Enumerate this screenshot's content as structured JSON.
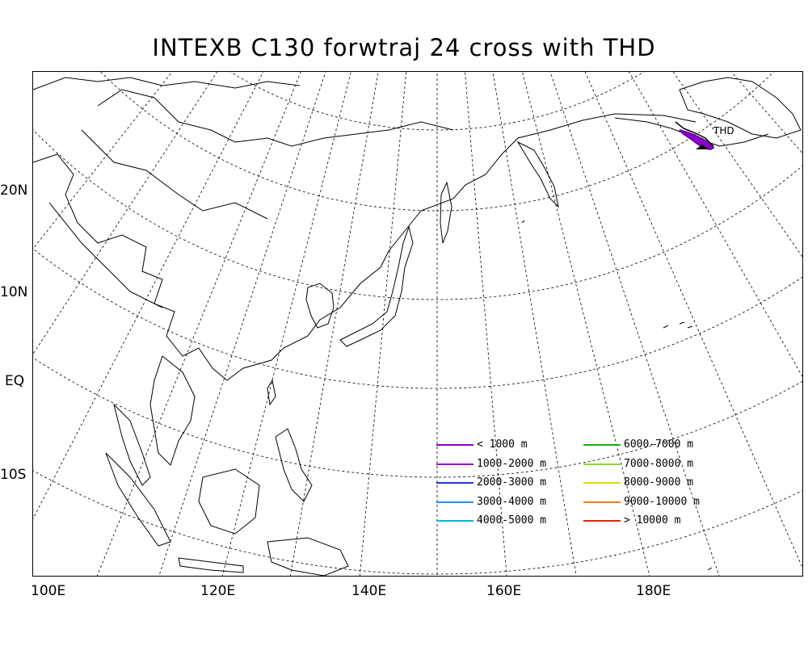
{
  "title": "INTEXB C130 forwtraj 24 cross with THD",
  "map": {
    "type": "polar-stereographic",
    "lat_labels": [
      "20N",
      "10N",
      "EQ",
      "10S"
    ],
    "lon_labels": [
      "100E",
      "120E",
      "140E",
      "160E",
      "180E"
    ],
    "station_label": "THD"
  },
  "legend": [
    {
      "label": "< 1000 m",
      "color": "#8a00c8"
    },
    {
      "label": "1000-2000 m",
      "color": "#9b00d8"
    },
    {
      "label": "2000-3000 m",
      "color": "#1e3ad0"
    },
    {
      "label": "3000-4000 m",
      "color": "#1e90ff"
    },
    {
      "label": "4000-5000 m",
      "color": "#00b8d8"
    },
    {
      "label": "6000-7000 m",
      "color": "#10b010"
    },
    {
      "label": "7000-8000 m",
      "color": "#90d830"
    },
    {
      "label": "8000-9000 m",
      "color": "#e8d800"
    },
    {
      "label": "9000-10000 m",
      "color": "#f08000"
    },
    {
      "label": "> 10000 m",
      "color": "#f02000"
    }
  ]
}
